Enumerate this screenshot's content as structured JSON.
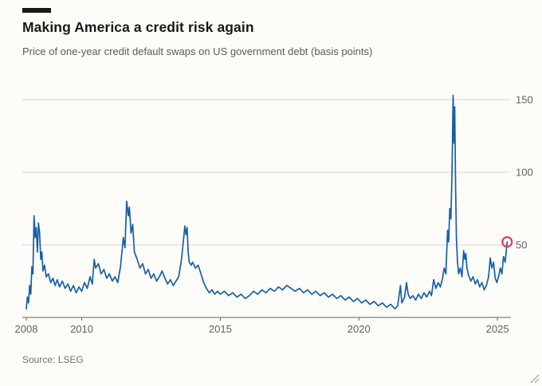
{
  "header": {
    "title": "Making America a credit risk again",
    "subtitle": "Price of one-year credit default swaps on US government debt (basis points)"
  },
  "footer": {
    "source": "Source: LSEG"
  },
  "colors": {
    "background": "#fdfcf8",
    "title_text": "#1a1817",
    "subtitle_text": "#5f5b57",
    "source_text": "#76726e",
    "grid": "#d9d5d0",
    "axis": "#66605c",
    "tick_text": "#66605c",
    "line": "#1560a8",
    "marker": "#e6375f"
  },
  "chart_data": {
    "type": "line",
    "title": "Making America a credit risk again",
    "subtitle": "Price of one-year credit default swaps on US government debt (basis points)",
    "xlabel": "",
    "ylabel": "basis points",
    "x_range": [
      2008,
      2025.4
    ],
    "y_range": [
      0,
      160
    ],
    "y_ticks": [
      50,
      100,
      150
    ],
    "x_ticks": [
      2008,
      2010,
      2015,
      2020,
      2025
    ],
    "x_tick_labels": [
      "2008",
      "2010",
      "2015",
      "2020",
      "2025"
    ],
    "grid": "horizontal",
    "legend": "none",
    "marker": {
      "x": 2025.35,
      "y": 52,
      "shape": "circle-outline"
    },
    "series": [
      {
        "name": "One-year US sovereign CDS price (basis points)",
        "points": [
          [
            2008.0,
            6
          ],
          [
            2008.04,
            14
          ],
          [
            2008.08,
            10
          ],
          [
            2008.12,
            22
          ],
          [
            2008.16,
            16
          ],
          [
            2008.2,
            35
          ],
          [
            2008.24,
            30
          ],
          [
            2008.28,
            70
          ],
          [
            2008.32,
            55
          ],
          [
            2008.36,
            62
          ],
          [
            2008.4,
            45
          ],
          [
            2008.44,
            65
          ],
          [
            2008.48,
            58
          ],
          [
            2008.52,
            40
          ],
          [
            2008.56,
            45
          ],
          [
            2008.6,
            32
          ],
          [
            2008.66,
            36
          ],
          [
            2008.72,
            28
          ],
          [
            2008.8,
            30
          ],
          [
            2008.88,
            24
          ],
          [
            2008.96,
            27
          ],
          [
            2009.04,
            22
          ],
          [
            2009.12,
            26
          ],
          [
            2009.2,
            21
          ],
          [
            2009.3,
            25
          ],
          [
            2009.4,
            20
          ],
          [
            2009.5,
            23
          ],
          [
            2009.6,
            18
          ],
          [
            2009.7,
            22
          ],
          [
            2009.8,
            17
          ],
          [
            2009.9,
            21
          ],
          [
            2010.0,
            18
          ],
          [
            2010.1,
            24
          ],
          [
            2010.2,
            20
          ],
          [
            2010.3,
            28
          ],
          [
            2010.38,
            23
          ],
          [
            2010.45,
            40
          ],
          [
            2010.5,
            34
          ],
          [
            2010.6,
            37
          ],
          [
            2010.7,
            30
          ],
          [
            2010.8,
            33
          ],
          [
            2010.9,
            27
          ],
          [
            2011.0,
            30
          ],
          [
            2011.1,
            25
          ],
          [
            2011.2,
            28
          ],
          [
            2011.3,
            24
          ],
          [
            2011.4,
            35
          ],
          [
            2011.5,
            55
          ],
          [
            2011.56,
            48
          ],
          [
            2011.62,
            80
          ],
          [
            2011.68,
            70
          ],
          [
            2011.72,
            76
          ],
          [
            2011.78,
            58
          ],
          [
            2011.84,
            64
          ],
          [
            2011.9,
            45
          ],
          [
            2012.0,
            40
          ],
          [
            2012.1,
            34
          ],
          [
            2012.2,
            37
          ],
          [
            2012.3,
            30
          ],
          [
            2012.4,
            33
          ],
          [
            2012.5,
            27
          ],
          [
            2012.6,
            30
          ],
          [
            2012.7,
            25
          ],
          [
            2012.8,
            28
          ],
          [
            2012.9,
            32
          ],
          [
            2013.0,
            27
          ],
          [
            2013.1,
            23
          ],
          [
            2013.2,
            26
          ],
          [
            2013.3,
            22
          ],
          [
            2013.4,
            25
          ],
          [
            2013.5,
            28
          ],
          [
            2013.6,
            40
          ],
          [
            2013.68,
            55
          ],
          [
            2013.72,
            63
          ],
          [
            2013.76,
            57
          ],
          [
            2013.8,
            62
          ],
          [
            2013.84,
            45
          ],
          [
            2013.88,
            38
          ],
          [
            2013.95,
            36
          ],
          [
            2014.0,
            38
          ],
          [
            2014.1,
            34
          ],
          [
            2014.2,
            36
          ],
          [
            2014.3,
            30
          ],
          [
            2014.4,
            24
          ],
          [
            2014.5,
            20
          ],
          [
            2014.6,
            17
          ],
          [
            2014.7,
            19
          ],
          [
            2014.8,
            16
          ],
          [
            2014.9,
            18
          ],
          [
            2015.0,
            16
          ],
          [
            2015.15,
            18
          ],
          [
            2015.3,
            15
          ],
          [
            2015.45,
            17
          ],
          [
            2015.6,
            14
          ],
          [
            2015.75,
            16
          ],
          [
            2015.9,
            13
          ],
          [
            2016.05,
            15
          ],
          [
            2016.2,
            18
          ],
          [
            2016.35,
            16
          ],
          [
            2016.5,
            19
          ],
          [
            2016.65,
            17
          ],
          [
            2016.8,
            20
          ],
          [
            2016.95,
            18
          ],
          [
            2017.1,
            21
          ],
          [
            2017.25,
            19
          ],
          [
            2017.4,
            22
          ],
          [
            2017.55,
            20
          ],
          [
            2017.7,
            18
          ],
          [
            2017.85,
            20
          ],
          [
            2018.0,
            17
          ],
          [
            2018.15,
            19
          ],
          [
            2018.3,
            16
          ],
          [
            2018.45,
            18
          ],
          [
            2018.6,
            15
          ],
          [
            2018.75,
            17
          ],
          [
            2018.9,
            14
          ],
          [
            2019.05,
            16
          ],
          [
            2019.2,
            13
          ],
          [
            2019.35,
            15
          ],
          [
            2019.5,
            12
          ],
          [
            2019.65,
            14
          ],
          [
            2019.8,
            11
          ],
          [
            2019.95,
            13
          ],
          [
            2020.1,
            10
          ],
          [
            2020.25,
            12
          ],
          [
            2020.4,
            9
          ],
          [
            2020.55,
            11
          ],
          [
            2020.7,
            8
          ],
          [
            2020.85,
            10
          ],
          [
            2021.0,
            7
          ],
          [
            2021.15,
            9
          ],
          [
            2021.3,
            6
          ],
          [
            2021.4,
            8
          ],
          [
            2021.5,
            22
          ],
          [
            2021.55,
            10
          ],
          [
            2021.65,
            14
          ],
          [
            2021.72,
            24
          ],
          [
            2021.78,
            16
          ],
          [
            2021.85,
            13
          ],
          [
            2021.95,
            15
          ],
          [
            2022.05,
            12
          ],
          [
            2022.15,
            16
          ],
          [
            2022.25,
            13
          ],
          [
            2022.35,
            17
          ],
          [
            2022.45,
            14
          ],
          [
            2022.55,
            18
          ],
          [
            2022.62,
            15
          ],
          [
            2022.7,
            26
          ],
          [
            2022.78,
            20
          ],
          [
            2022.86,
            24
          ],
          [
            2022.94,
            21
          ],
          [
            2023.02,
            27
          ],
          [
            2023.08,
            34
          ],
          [
            2023.14,
            30
          ],
          [
            2023.2,
            60
          ],
          [
            2023.24,
            52
          ],
          [
            2023.28,
            75
          ],
          [
            2023.32,
            68
          ],
          [
            2023.36,
            100
          ],
          [
            2023.4,
            153
          ],
          [
            2023.43,
            120
          ],
          [
            2023.46,
            145
          ],
          [
            2023.49,
            90
          ],
          [
            2023.52,
            55
          ],
          [
            2023.56,
            38
          ],
          [
            2023.6,
            30
          ],
          [
            2023.66,
            34
          ],
          [
            2023.72,
            28
          ],
          [
            2023.78,
            46
          ],
          [
            2023.82,
            40
          ],
          [
            2023.86,
            44
          ],
          [
            2023.9,
            34
          ],
          [
            2023.96,
            29
          ],
          [
            2024.04,
            25
          ],
          [
            2024.12,
            28
          ],
          [
            2024.2,
            23
          ],
          [
            2024.28,
            26
          ],
          [
            2024.36,
            21
          ],
          [
            2024.44,
            24
          ],
          [
            2024.52,
            19
          ],
          [
            2024.6,
            22
          ],
          [
            2024.68,
            28
          ],
          [
            2024.74,
            41
          ],
          [
            2024.8,
            34
          ],
          [
            2024.86,
            38
          ],
          [
            2024.92,
            27
          ],
          [
            2024.98,
            24
          ],
          [
            2025.04,
            28
          ],
          [
            2025.1,
            34
          ],
          [
            2025.16,
            30
          ],
          [
            2025.22,
            42
          ],
          [
            2025.28,
            38
          ],
          [
            2025.35,
            52
          ]
        ]
      }
    ]
  }
}
